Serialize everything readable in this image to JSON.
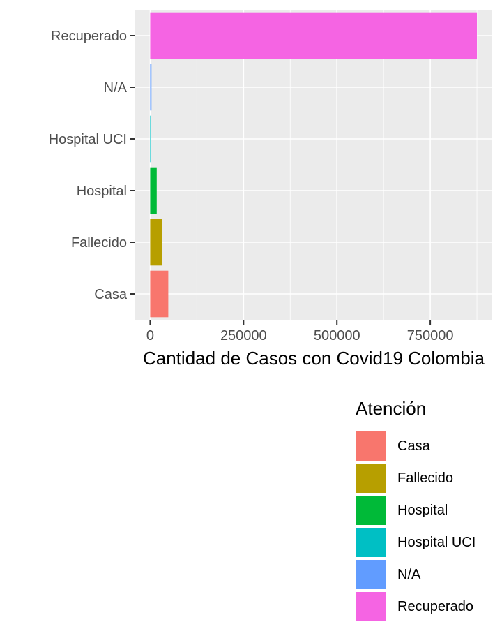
{
  "chart_data": {
    "type": "bar",
    "orientation": "horizontal",
    "categories": [
      "Casa",
      "Fallecido",
      "Hospital",
      "Hospital UCI",
      "N/A",
      "Recuperado"
    ],
    "values": [
      48500,
      31000,
      17500,
      2800,
      3500,
      875000
    ],
    "colors": [
      "#F8766D",
      "#B79F00",
      "#00BA38",
      "#00BFC4",
      "#619CFF",
      "#F564E3"
    ],
    "xlabel": "Cantidad de Casos con Covid19 Colombia",
    "ylabel": "",
    "xlim": [
      -40000,
      916000
    ],
    "xticks": [
      0,
      250000,
      500000,
      750000
    ],
    "xtick_labels": [
      "0",
      "250000",
      "500000",
      "750000"
    ],
    "grid": true,
    "legend_title": "Atención",
    "legend_position": "bottom-right"
  }
}
